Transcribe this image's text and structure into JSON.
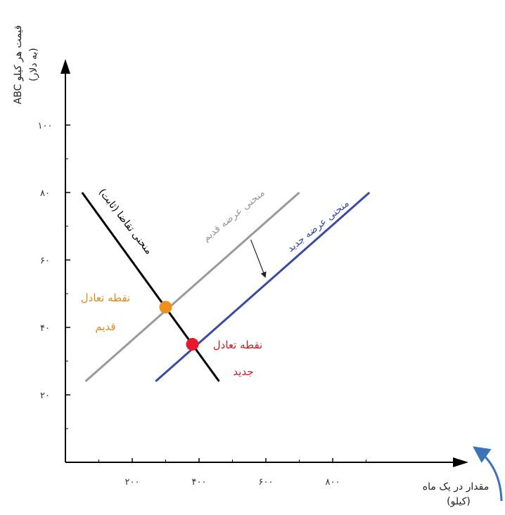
{
  "chart_data": {
    "type": "line",
    "title": "",
    "xlabel": "مقدار در یک ماه",
    "xlabel_unit": "(کیلو)",
    "ylabel": "قیمت هر کیلو ABC",
    "ylabel_unit": "(به دلار)",
    "xlim": [
      0,
      1000
    ],
    "ylim": [
      0,
      110
    ],
    "x_ticks": [
      200,
      400,
      600,
      800
    ],
    "x_tick_labels": [
      "۲۰۰",
      "۴۰۰",
      "۶۰۰",
      "۸۰۰"
    ],
    "y_ticks": [
      20,
      40,
      60,
      80,
      100
    ],
    "y_tick_labels": [
      "۲۰",
      "۴۰",
      "۶۰",
      "۸۰",
      "۱۰۰"
    ],
    "grid": false,
    "series": [
      {
        "name": "منحنی تقاضا (ثابت)",
        "color": "#000000",
        "points": [
          [
            50,
            80
          ],
          [
            460,
            24
          ]
        ]
      },
      {
        "name": "منحنی عرضه قدیم",
        "color": "#9a9a9a",
        "points": [
          [
            60,
            24
          ],
          [
            700,
            80
          ]
        ]
      },
      {
        "name": "منحنی عرضه جدید",
        "color": "#3a4aa0",
        "points": [
          [
            270,
            24
          ],
          [
            910,
            80
          ]
        ]
      }
    ],
    "points": [
      {
        "label_line1": "نقطه تعادل",
        "label_line2": "قدیم",
        "x": 300,
        "y": 46,
        "color": "#f0901c",
        "text_color": "#e08a20"
      },
      {
        "label_line1": "نقطه تعادل",
        "label_line2": "جدید",
        "x": 380,
        "y": 35,
        "color": "#e8192c",
        "text_color": "#c81c2c"
      }
    ],
    "shift_arrow": {
      "from": [
        555,
        66
      ],
      "to": [
        598,
        55
      ]
    }
  }
}
